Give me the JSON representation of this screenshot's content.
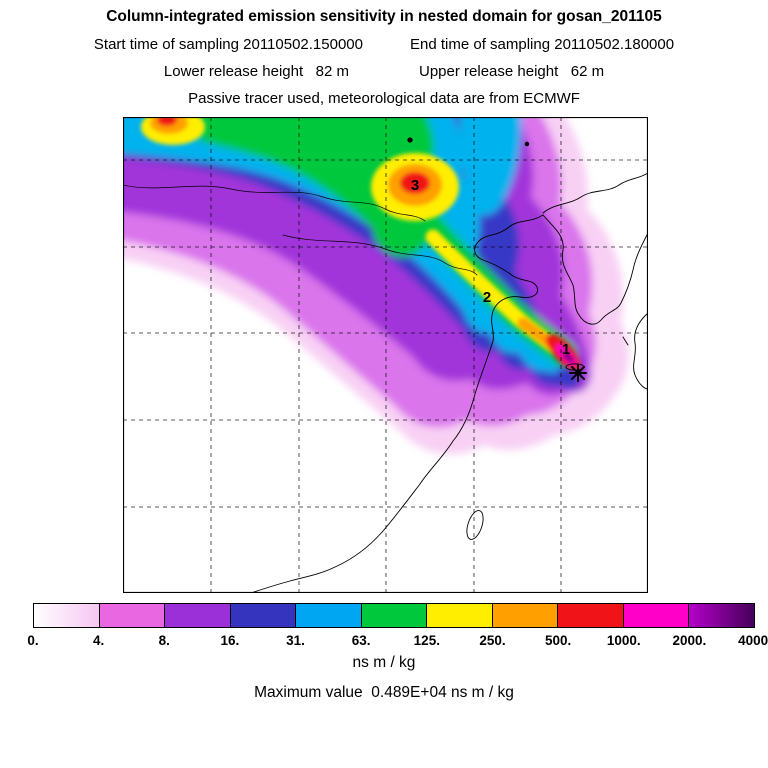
{
  "header": {
    "title": "Column-integrated emission sensitivity in nested domain for gosan_201105",
    "start_time": "Start time of sampling 20110502.150000",
    "end_time": "End time of sampling 20110502.180000",
    "lower_release": "Lower release height   82 m",
    "upper_release": "Upper release height   62 m",
    "tracer_line": "Passive tracer used, meteorological data are from ECMWF"
  },
  "chart_data": {
    "type": "heatmap",
    "title": "Column-integrated emission sensitivity in nested domain for gosan_201105",
    "description": "Map of East Asia (nested model domain) with a plume of column-integrated emission sensitivity extending from the Gosan receptor (star, Jeju Island) northwest across China and Mongolia; dashed graticule and coastlines overlaid",
    "units": "ns m / kg",
    "max_value": "0.489E+04",
    "legend_position": "bottom",
    "grid": "dashed graticule",
    "colorbar": {
      "tick_labels": [
        "0.",
        "4.",
        "8.",
        "16.",
        "31.",
        "63.",
        "125.",
        "250.",
        "500.",
        "1000.",
        "2000.",
        "4000."
      ],
      "levels": [
        0,
        4,
        8,
        16,
        31,
        63,
        125,
        250,
        500,
        1000,
        2000,
        4000
      ],
      "cell_colors": [
        "linear-gradient(to right,#ffffff,#f6c6f2)",
        "#e968e2",
        "#9b30d8",
        "#3434bE",
        "#00a6f2",
        "#00c83c",
        "#ffee00",
        "#ffa000",
        "#f01418",
        "#ff00c8",
        "linear-gradient(to right,#b400c8,#46005a)"
      ]
    },
    "markers": [
      {
        "label": "1",
        "note": "plume core near receptor"
      },
      {
        "label": "2",
        "note": "mid-plume over Yellow Sea coast"
      },
      {
        "label": "3",
        "note": "upstream plume core"
      }
    ],
    "receptor": {
      "station": "gosan",
      "marker": "black asterisk star on Jeju Island"
    }
  },
  "footer": {
    "units_label": "ns m / kg",
    "max_value_line": "Maximum value  0.489E+04 ns m / kg"
  }
}
